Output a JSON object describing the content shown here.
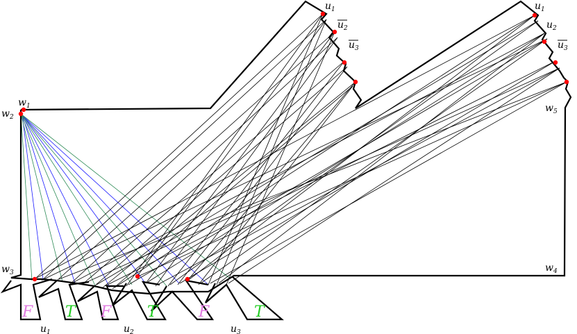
{
  "labels": {
    "w1": "w",
    "w1_sub": "1",
    "w2": "w",
    "w2_sub": "2",
    "w3": "w",
    "w3_sub": "3",
    "w4": "w",
    "w4_sub": "4",
    "w5": "w",
    "w5_sub": "5",
    "top_left_u1": "u",
    "top_left_u1_sub": "1",
    "top_left_u2": "u",
    "top_left_u2_sub": "2",
    "top_left_u3": "u",
    "top_left_u3_sub": "3",
    "top_right_u1": "u",
    "top_right_u1_sub": "1",
    "top_right_u2": "u",
    "top_right_u2_sub": "2",
    "top_right_u3": "u",
    "top_right_u3_sub": "3",
    "bottom_u1": "u",
    "bottom_u1_sub": "1",
    "bottom_u2": "u",
    "bottom_u2_sub": "2",
    "bottom_u3": "u",
    "bottom_u3_sub": "3"
  },
  "gadgets": [
    {
      "value": "F",
      "color": "#e07be0"
    },
    {
      "value": "T",
      "color": "#22cc22"
    },
    {
      "value": "F",
      "color": "#e07be0"
    },
    {
      "value": "T",
      "color": "#22cc22"
    },
    {
      "value": "F",
      "color": "#e07be0"
    },
    {
      "value": "T",
      "color": "#22cc22"
    }
  ],
  "colors": {
    "outline": "#000000",
    "point": "#ff0000",
    "blue_rays": "#1a1aff",
    "green_rays": "#2e8b57",
    "black_rays": "#000000"
  }
}
